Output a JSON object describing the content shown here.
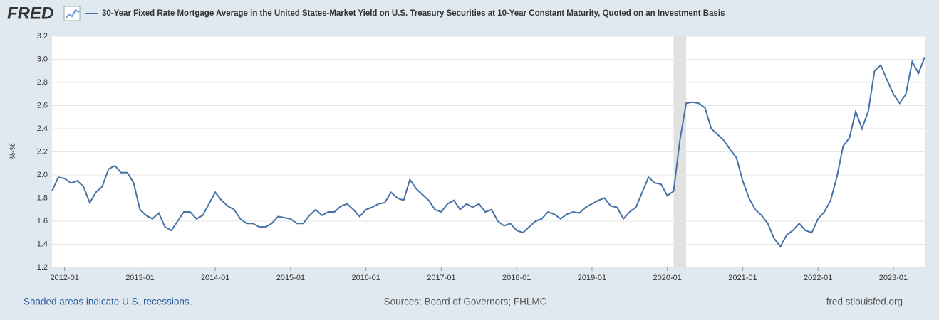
{
  "logo": "FRED",
  "chart_data": {
    "type": "line",
    "y_label": "%-%",
    "x": [
      "2011-11",
      "2011-12",
      "2012-01",
      "2012-02",
      "2012-03",
      "2012-04",
      "2012-05",
      "2012-06",
      "2012-07",
      "2012-08",
      "2012-09",
      "2012-10",
      "2012-11",
      "2012-12",
      "2013-01",
      "2013-02",
      "2013-03",
      "2013-04",
      "2013-05",
      "2013-06",
      "2013-07",
      "2013-08",
      "2013-09",
      "2013-10",
      "2013-11",
      "2013-12",
      "2014-01",
      "2014-02",
      "2014-03",
      "2014-04",
      "2014-05",
      "2014-06",
      "2014-07",
      "2014-08",
      "2014-09",
      "2014-10",
      "2014-11",
      "2014-12",
      "2015-01",
      "2015-02",
      "2015-03",
      "2015-04",
      "2015-05",
      "2015-06",
      "2015-07",
      "2015-08",
      "2015-09",
      "2015-10",
      "2015-11",
      "2015-12",
      "2016-01",
      "2016-02",
      "2016-03",
      "2016-04",
      "2016-05",
      "2016-06",
      "2016-07",
      "2016-08",
      "2016-09",
      "2016-10",
      "2016-11",
      "2016-12",
      "2017-01",
      "2017-02",
      "2017-03",
      "2017-04",
      "2017-05",
      "2017-06",
      "2017-07",
      "2017-08",
      "2017-09",
      "2017-10",
      "2017-11",
      "2017-12",
      "2018-01",
      "2018-02",
      "2018-03",
      "2018-04",
      "2018-05",
      "2018-06",
      "2018-07",
      "2018-08",
      "2018-09",
      "2018-10",
      "2018-11",
      "2018-12",
      "2019-01",
      "2019-02",
      "2019-03",
      "2019-04",
      "2019-05",
      "2019-06",
      "2019-07",
      "2019-08",
      "2019-09",
      "2019-10",
      "2019-11",
      "2019-12",
      "2020-01",
      "2020-02",
      "2020-03",
      "2020-04",
      "2020-05",
      "2020-06",
      "2020-07",
      "2020-08",
      "2020-09",
      "2020-10",
      "2020-11",
      "2020-12",
      "2021-01",
      "2021-02",
      "2021-03",
      "2021-04",
      "2021-05",
      "2021-06",
      "2021-07",
      "2021-08",
      "2021-09",
      "2021-10",
      "2021-11",
      "2021-12",
      "2022-01",
      "2022-02",
      "2022-03",
      "2022-04",
      "2022-05",
      "2022-06",
      "2022-07",
      "2022-08",
      "2022-09",
      "2022-10",
      "2022-11",
      "2022-12",
      "2023-01",
      "2023-02",
      "2023-03",
      "2023-04",
      "2023-05",
      "2023-06"
    ],
    "series": [
      {
        "name": "30-Year Fixed Rate Mortgage Average in the United States-Market Yield on U.S. Treasury Securities at 10-Year Constant Maturity, Quoted on an Investment Basis",
        "color": "#4572a7",
        "values": [
          1.86,
          1.98,
          1.97,
          1.93,
          1.95,
          1.9,
          1.76,
          1.85,
          1.9,
          2.05,
          2.08,
          2.02,
          2.02,
          1.93,
          1.7,
          1.65,
          1.62,
          1.67,
          1.55,
          1.52,
          1.6,
          1.68,
          1.68,
          1.62,
          1.65,
          1.75,
          1.85,
          1.78,
          1.73,
          1.7,
          1.62,
          1.58,
          1.58,
          1.55,
          1.55,
          1.58,
          1.64,
          1.63,
          1.62,
          1.58,
          1.58,
          1.65,
          1.7,
          1.65,
          1.68,
          1.68,
          1.73,
          1.75,
          1.7,
          1.64,
          1.7,
          1.72,
          1.75,
          1.76,
          1.85,
          1.8,
          1.78,
          1.96,
          1.88,
          1.83,
          1.78,
          1.7,
          1.68,
          1.75,
          1.78,
          1.7,
          1.75,
          1.72,
          1.75,
          1.68,
          1.7,
          1.6,
          1.56,
          1.58,
          1.52,
          1.5,
          1.55,
          1.6,
          1.62,
          1.68,
          1.66,
          1.62,
          1.66,
          1.68,
          1.67,
          1.72,
          1.75,
          1.78,
          1.8,
          1.73,
          1.72,
          1.62,
          1.68,
          1.72,
          1.85,
          1.98,
          1.93,
          1.92,
          1.82,
          1.86,
          2.3,
          2.62,
          2.63,
          2.62,
          2.58,
          2.4,
          2.35,
          2.3,
          2.22,
          2.15,
          1.95,
          1.8,
          1.7,
          1.65,
          1.58,
          1.45,
          1.38,
          1.48,
          1.52,
          1.58,
          1.52,
          1.5,
          1.62,
          1.68,
          1.78,
          1.98,
          2.25,
          2.32,
          2.55,
          2.4,
          2.55,
          2.9,
          2.95,
          2.82,
          2.7,
          2.62,
          2.7,
          2.98,
          2.88,
          3.02
        ]
      }
    ],
    "xlim": [
      "2011-11",
      "2023-06"
    ],
    "xticks": [
      "2012-01",
      "2013-01",
      "2014-01",
      "2015-01",
      "2016-01",
      "2017-01",
      "2018-01",
      "2019-01",
      "2020-01",
      "2021-01",
      "2022-01",
      "2023-01"
    ],
    "ylim": [
      1.2,
      3.2
    ],
    "yticks": [
      1.2,
      1.4,
      1.6,
      1.8,
      {
        "value": 2,
        "label": "2.0"
      },
      2.2,
      2.4,
      2.6,
      2.8,
      {
        "value": 3,
        "label": "3.0"
      },
      3.2
    ],
    "grid": true,
    "recessions": [
      {
        "start": "2020-02",
        "end": "2020-04"
      }
    ],
    "recession_color": "#e1e1e1"
  },
  "footer": {
    "note": "Shaded areas indicate U.S. recessions.",
    "sources": "Sources: Board of Governors; FHLMC",
    "site": "fred.stlouisfed.org"
  }
}
